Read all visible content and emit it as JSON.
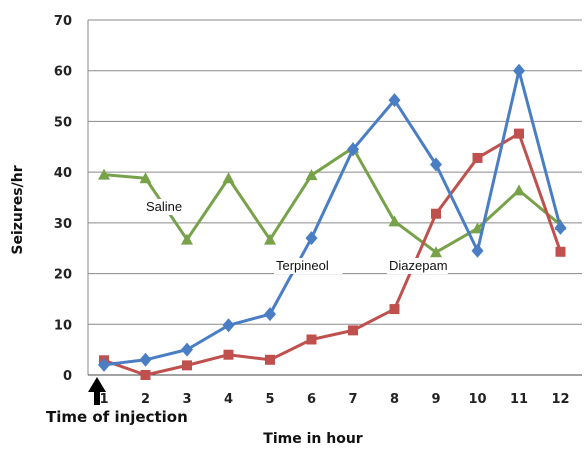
{
  "chart_data": {
    "type": "line",
    "xlabel": "Time in hour",
    "ylabel": "Seizures/hr",
    "ylim": [
      0,
      70
    ],
    "yticks": [
      0,
      10,
      20,
      30,
      40,
      50,
      60,
      70
    ],
    "x": [
      1,
      2,
      3,
      4,
      5,
      6,
      7,
      8,
      9,
      10,
      11,
      12
    ],
    "grid": true,
    "series": [
      {
        "name": "Saline",
        "color": "#77a24a",
        "marker": "triangle",
        "values": [
          39.5,
          38.8,
          26.7,
          38.8,
          26.7,
          39.4,
          44.8,
          30.3,
          24.2,
          28.9,
          36.4,
          29.6
        ]
      },
      {
        "name": "Terpineol",
        "color": "#4a7ec4",
        "marker": "diamond",
        "values": [
          2,
          3,
          5,
          9.8,
          12,
          27,
          44.5,
          54.2,
          41.5,
          24.5,
          60,
          29
        ]
      },
      {
        "name": "Diazepam",
        "color": "#c0504d",
        "marker": "square",
        "values": [
          2.9,
          0,
          1.9,
          4,
          3,
          7,
          8.8,
          13,
          31.8,
          42.8,
          47.6,
          24.3
        ]
      }
    ],
    "annotation": "Time of injection"
  }
}
